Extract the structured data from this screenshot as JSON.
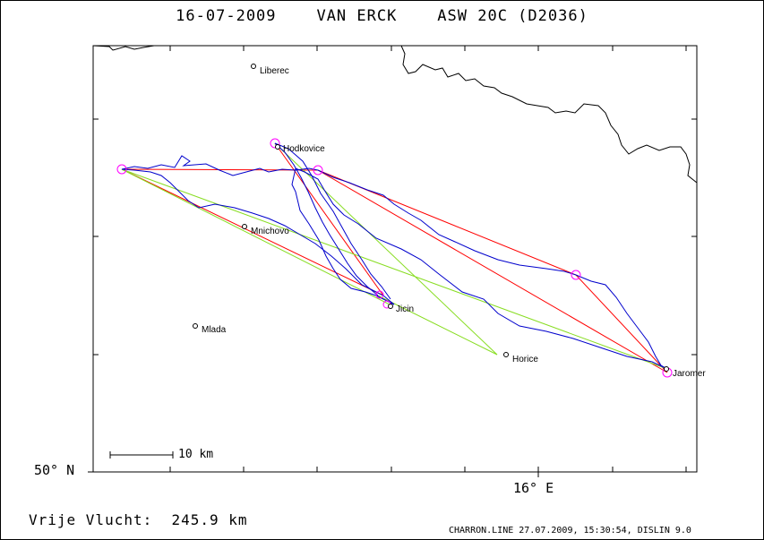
{
  "title": "16-07-2009    VAN ERCK    ASW 20C (D2036)",
  "axes": {
    "lat_label": "50° N",
    "lon_label": "16° E"
  },
  "scale_bar": {
    "label": "10 km"
  },
  "distance_text": "Vrije Vlucht:  245.9 km",
  "footer": "CHARRON.LINE 27.07.2009, 15:30:54, DISLIN 9.0",
  "towns": [
    {
      "name": "Liberec"
    },
    {
      "name": "Hodkovice"
    },
    {
      "name": "Mnichovo"
    },
    {
      "name": "Jicin"
    },
    {
      "name": "Mlada"
    },
    {
      "name": "Horice"
    },
    {
      "name": "Jaromer"
    }
  ],
  "colors": {
    "track": "#0000cc",
    "task_red": "#ff0000",
    "task_green": "#88dd22",
    "turnpoint": "#ff00ff",
    "border": "#000000"
  }
}
